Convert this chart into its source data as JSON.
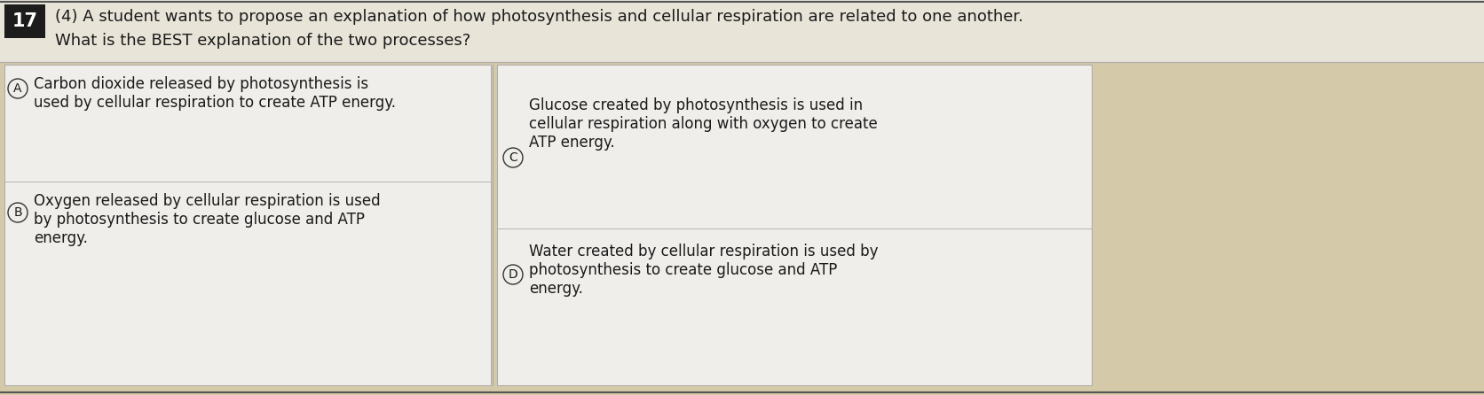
{
  "question_number": "17",
  "question_points": "(4)",
  "question_text1": "A student wants to propose an explanation of how photosynthesis and cellular respiration are related to one another.",
  "question_text2": "What is the BEST explanation of the two processes?",
  "option_A_line1": "Carbon dioxide released by photosynthesis is",
  "option_A_line2": "used by cellular respiration to create ATP energy.",
  "option_B_line1": "Oxygen released by cellular respiration is used",
  "option_B_line2": "by photosynthesis to create glucose and ATP",
  "option_B_line3": "energy.",
  "option_C_line1": "Glucose created by photosynthesis is used in",
  "option_C_line2": "cellular respiration along with oxygen to create",
  "option_C_line3": "ATP energy.",
  "option_D_line1": "Water created by cellular respiration is used by",
  "option_D_line2": "photosynthesis to create glucose and ATP",
  "option_D_line3": "energy.",
  "overall_bg": "#d4c9a8",
  "header_bg": "#e8e4d8",
  "white_box_bg": "#f0eeea",
  "white_box2_bg": "#f0eeea",
  "num_box_bg": "#1c1c1c",
  "num_box_color": "#ffffff",
  "text_color": "#1a1a1a",
  "circle_color": "#333333",
  "divider_color": "#aaaaaa",
  "header_line_color": "#555555",
  "fontsize_question": 13,
  "fontsize_option": 12
}
